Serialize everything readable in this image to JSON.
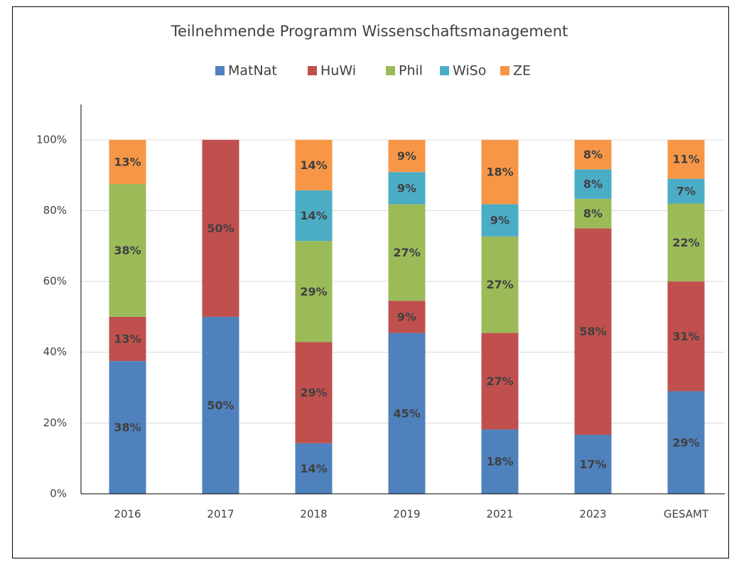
{
  "chart_data": {
    "type": "stacked_bar",
    "title": "Teilnehmende Programm Wissenschaftsmanagement",
    "categories": [
      "2016",
      "2017",
      "2018",
      "2019",
      "2021",
      "2023",
      "GESAMT"
    ],
    "series": [
      {
        "name": "MatNat",
        "color": "#4f81bd",
        "values": [
          37.5,
          50,
          14.29,
          45.45,
          18.18,
          16.67,
          29
        ],
        "value_labels": [
          "38%",
          "50%",
          "14%",
          "45%",
          "18%",
          "17%",
          "29%"
        ]
      },
      {
        "name": "HuWi",
        "color": "#c0504d",
        "values": [
          12.5,
          50,
          28.57,
          9.09,
          27.27,
          58.33,
          31
        ],
        "value_labels": [
          "13%",
          "50%",
          "29%",
          "9%",
          "27%",
          "58%",
          "31%"
        ]
      },
      {
        "name": "Phil",
        "color": "#9bbb59",
        "values": [
          37.5,
          0,
          28.57,
          27.27,
          27.27,
          8.33,
          22
        ],
        "value_labels": [
          "38%",
          null,
          "29%",
          "27%",
          "27%",
          "8%",
          "22%"
        ]
      },
      {
        "name": "WiSo",
        "color": "#4bacc6",
        "values": [
          0,
          0,
          14.29,
          9.09,
          9.09,
          8.33,
          7
        ],
        "value_labels": [
          null,
          null,
          "14%",
          "9%",
          "9%",
          "8%",
          "7%"
        ]
      },
      {
        "name": "ZE",
        "color": "#f79646",
        "values": [
          12.5,
          0,
          14.29,
          9.09,
          18.18,
          8.33,
          11
        ],
        "value_labels": [
          "13%",
          null,
          "14%",
          "9%",
          "18%",
          "8%",
          "11%"
        ]
      }
    ],
    "ylim": [
      0,
      110
    ],
    "yticks": [
      {
        "value": 0,
        "label": "0%"
      },
      {
        "value": 20,
        "label": "20%"
      },
      {
        "value": 40,
        "label": "40%"
      },
      {
        "value": 60,
        "label": "60%"
      },
      {
        "value": 80,
        "label": "80%"
      },
      {
        "value": 100,
        "label": "100%"
      }
    ],
    "grid": true,
    "legend": "top"
  }
}
